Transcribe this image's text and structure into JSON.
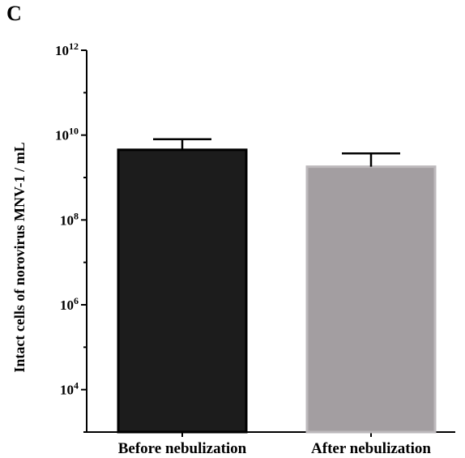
{
  "panel_label": "C",
  "chart_data": {
    "type": "bar",
    "title": "",
    "xlabel": "",
    "ylabel": "Intact cells of norovirus MNV-1 / mL",
    "yscale": "log",
    "ylim": [
      1000,
      1000000000000
    ],
    "yticks": [
      {
        "value": 10000,
        "base": "10",
        "exp": "4"
      },
      {
        "value": 1000000,
        "base": "10",
        "exp": "6"
      },
      {
        "value": 100000000,
        "base": "10",
        "exp": "8"
      },
      {
        "value": 10000000000,
        "base": "10",
        "exp": "10"
      },
      {
        "value": 1000000000000,
        "base": "10",
        "exp": "12"
      }
    ],
    "categories": [
      "Before nebulization",
      "After nebulization"
    ],
    "values": [
      4500000000,
      1800000000
    ],
    "error_upper": [
      8000000000,
      3700000000
    ],
    "error_lower": [
      4500000000,
      1800000000
    ],
    "colors": [
      "#1c1c1c",
      "#a39ea1"
    ],
    "bar_edge_colors": [
      "#000000",
      "#bdb9bc"
    ],
    "grid": false,
    "legend": "none"
  }
}
